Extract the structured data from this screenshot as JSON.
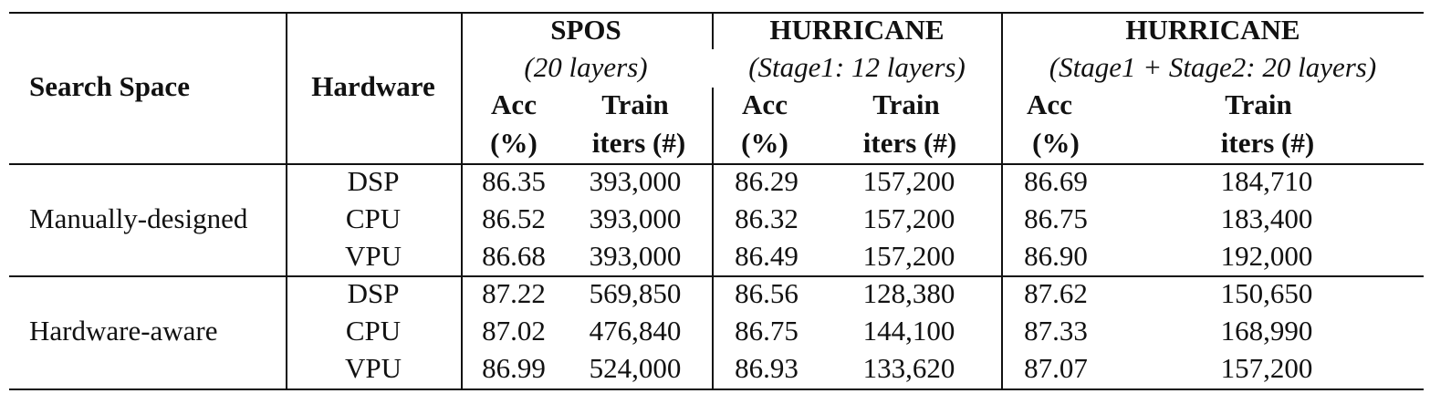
{
  "header": {
    "search_space": "Search Space",
    "hardware": "Hardware",
    "groups": [
      {
        "name": "SPOS",
        "sub": "(20 layers)"
      },
      {
        "name": "HURRICANE",
        "sub": "(Stage1: 12 layers)"
      },
      {
        "name": "HURRICANE",
        "sub": "(Stage1 + Stage2: 20 layers)"
      }
    ],
    "acc_line1": "Acc",
    "acc_line2": "(%)",
    "train_line1": "Train",
    "train_line2": "iters (#)"
  },
  "sections": [
    {
      "name": "Manually-designed",
      "rows": [
        {
          "hw": "DSP",
          "v": [
            "86.35",
            "393,000",
            "86.29",
            "157,200",
            "86.69",
            "184,710"
          ]
        },
        {
          "hw": "CPU",
          "v": [
            "86.52",
            "393,000",
            "86.32",
            "157,200",
            "86.75",
            "183,400"
          ]
        },
        {
          "hw": "VPU",
          "v": [
            "86.68",
            "393,000",
            "86.49",
            "157,200",
            "86.90",
            "192,000"
          ]
        }
      ]
    },
    {
      "name": "Hardware-aware",
      "rows": [
        {
          "hw": "DSP",
          "v": [
            "87.22",
            "569,850",
            "86.56",
            "128,380",
            "87.62",
            "150,650"
          ]
        },
        {
          "hw": "CPU",
          "v": [
            "87.02",
            "476,840",
            "86.75",
            "144,100",
            "87.33",
            "168,990"
          ]
        },
        {
          "hw": "VPU",
          "v": [
            "86.99",
            "524,000",
            "86.93",
            "133,620",
            "87.07",
            "157,200"
          ]
        }
      ]
    }
  ]
}
